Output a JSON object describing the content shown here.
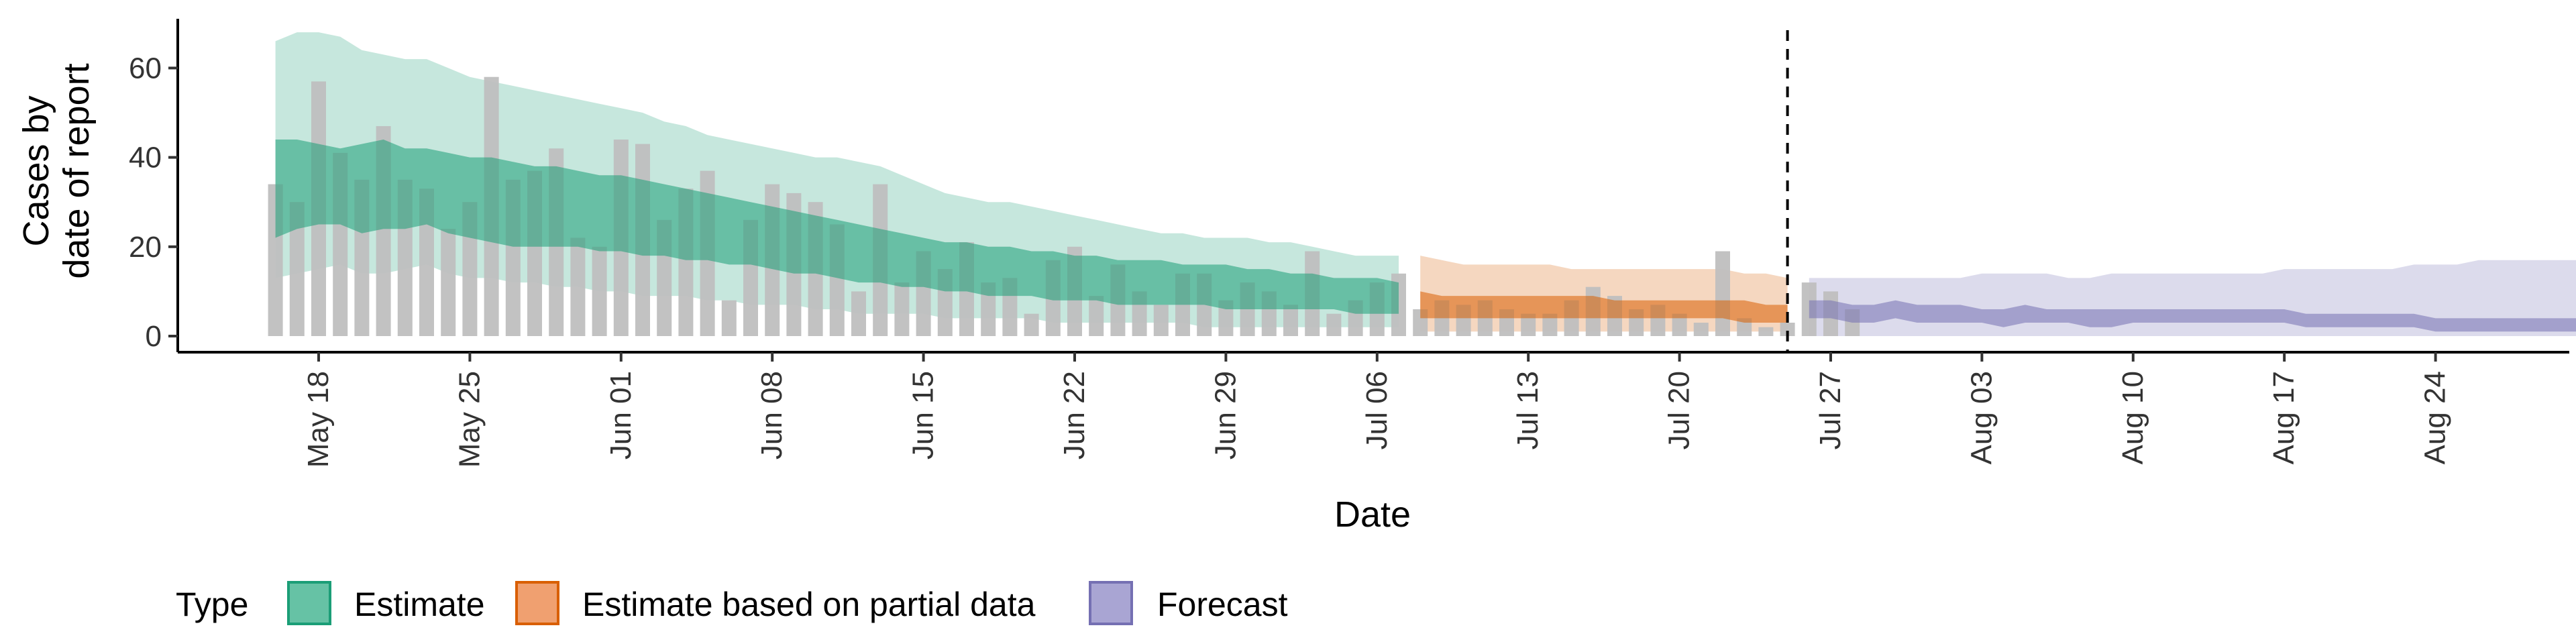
{
  "chart_data": {
    "type": "area",
    "xlabel": "Date",
    "ylabel": [
      "Cases by",
      "date of report"
    ],
    "ylim": [
      -3,
      72
    ],
    "x_ticks": [
      "May 18",
      "May 25",
      "Jun 01",
      "Jun 08",
      "Jun 15",
      "Jun 22",
      "Jun 29",
      "Jul 06",
      "Jul 13",
      "Jul 20",
      "Jul 27",
      "Aug 03",
      "Aug 10",
      "Aug 17",
      "Aug 24"
    ],
    "y_ticks": [
      0,
      20,
      40,
      60
    ],
    "vline_date": "2020-07-25",
    "legend": {
      "title": "Type",
      "position": "bottom-left",
      "items": [
        {
          "label": "Estimate",
          "fill": "#66c2a5",
          "stroke": "#1b9e77"
        },
        {
          "label": "Estimate based on partial data",
          "fill": "#f0a070",
          "stroke": "#d95f02"
        },
        {
          "label": "Forecast",
          "fill": "#a9a5d3",
          "stroke": "#7570b3"
        }
      ]
    },
    "colors": {
      "bars": "#bfbfbf",
      "estimate": "#1b9e77",
      "partial": "#d95f02",
      "forecast": "#7570b3",
      "vline": "#000000"
    },
    "reported_cases": {
      "start": "2020-05-16",
      "values": [
        34,
        30,
        57,
        41,
        35,
        47,
        35,
        33,
        24,
        30,
        58,
        35,
        37,
        42,
        22,
        20,
        44,
        43,
        26,
        33,
        37,
        8,
        26,
        34,
        32,
        30,
        25,
        10,
        34,
        12,
        19,
        15,
        21,
        12,
        13,
        5,
        17,
        20,
        9,
        16,
        10,
        7,
        14,
        14,
        8,
        12,
        10,
        7,
        19,
        5,
        8,
        12,
        14,
        6,
        8,
        7,
        8,
        6,
        5,
        5,
        8,
        11,
        9,
        6,
        7,
        5,
        3,
        19,
        4,
        2,
        3,
        12,
        10,
        6
      ]
    },
    "series": [
      {
        "name": "Estimate",
        "start": "2020-05-16",
        "inner": {
          "lower": [
            22,
            24,
            25,
            25,
            23,
            24,
            24,
            25,
            23,
            22,
            21,
            20,
            20,
            20,
            20,
            19,
            19,
            18,
            18,
            17,
            17,
            16,
            16,
            15,
            14,
            14,
            13,
            12,
            12,
            11,
            11,
            10,
            10,
            9,
            9,
            9,
            8,
            8,
            8,
            7,
            7,
            7,
            7,
            7,
            6,
            6,
            6,
            6,
            6,
            6,
            5,
            5,
            5
          ],
          "upper": [
            44,
            44,
            43,
            42,
            43,
            44,
            42,
            42,
            41,
            40,
            40,
            39,
            38,
            38,
            37,
            36,
            36,
            35,
            34,
            33,
            32,
            31,
            30,
            29,
            28,
            27,
            26,
            25,
            24,
            23,
            22,
            21,
            21,
            20,
            20,
            19,
            19,
            18,
            18,
            17,
            17,
            17,
            16,
            16,
            16,
            15,
            15,
            14,
            14,
            13,
            13,
            13,
            12
          ]
        },
        "outer": {
          "lower": [
            13,
            14,
            15,
            16,
            14,
            14,
            15,
            16,
            14,
            13,
            13,
            12,
            12,
            11,
            11,
            10,
            10,
            9,
            9,
            9,
            8,
            8,
            7,
            7,
            7,
            6,
            6,
            5,
            5,
            5,
            5,
            4,
            4,
            4,
            4,
            4,
            3,
            3,
            3,
            3,
            3,
            3,
            3,
            2,
            2,
            2,
            2,
            2,
            2,
            2,
            2,
            2,
            2
          ],
          "upper": [
            66,
            68,
            68,
            67,
            64,
            63,
            62,
            62,
            60,
            58,
            57,
            56,
            55,
            54,
            53,
            52,
            51,
            50,
            48,
            47,
            45,
            44,
            43,
            42,
            41,
            40,
            40,
            39,
            38,
            36,
            34,
            32,
            31,
            30,
            30,
            29,
            28,
            27,
            26,
            25,
            24,
            23,
            23,
            22,
            22,
            22,
            21,
            21,
            20,
            19,
            18,
            18,
            18
          ]
        }
      },
      {
        "name": "Estimate based on partial data",
        "start": "2020-07-08",
        "inner": {
          "lower": [
            4,
            4,
            4,
            4,
            4,
            4,
            4,
            4,
            4,
            4,
            4,
            4,
            4,
            4,
            4,
            3,
            3,
            3
          ],
          "upper": [
            10,
            9,
            9,
            9,
            9,
            9,
            9,
            9,
            9,
            8,
            8,
            8,
            8,
            8,
            8,
            8,
            7,
            7
          ]
        },
        "outer": {
          "lower": [
            1,
            1,
            1,
            1,
            1,
            1,
            1,
            1,
            1,
            1,
            1,
            1,
            1,
            1,
            1,
            1,
            1,
            1
          ],
          "upper": [
            18,
            17,
            16,
            16,
            16,
            16,
            16,
            15,
            15,
            15,
            15,
            15,
            15,
            15,
            15,
            14,
            14,
            13
          ]
        }
      },
      {
        "name": "Forecast",
        "start": "2020-07-26",
        "inner": {
          "lower": [
            4,
            4,
            3,
            3,
            4,
            3,
            3,
            3,
            3,
            2,
            3,
            3,
            3,
            2,
            2,
            3,
            3,
            3,
            3,
            3,
            3,
            3,
            3,
            2,
            2,
            2,
            2,
            2,
            2,
            1,
            1,
            1,
            1,
            1,
            1,
            1,
            1,
            1,
            1,
            1
          ],
          "upper": [
            8,
            8,
            7,
            7,
            8,
            7,
            7,
            7,
            6,
            6,
            7,
            6,
            6,
            6,
            6,
            6,
            6,
            6,
            6,
            6,
            6,
            6,
            6,
            5,
            5,
            5,
            5,
            5,
            5,
            4,
            4,
            4,
            4,
            4,
            4,
            4,
            4,
            4,
            4,
            4
          ]
        },
        "outer": {
          "lower": [
            0,
            0,
            0,
            0,
            0,
            0,
            0,
            0,
            0,
            0,
            0,
            0,
            0,
            0,
            0,
            0,
            0,
            0,
            0,
            0,
            0,
            0,
            0,
            0,
            0,
            0,
            0,
            0,
            0,
            0,
            0,
            0,
            0,
            0,
            0,
            0,
            0,
            0,
            0,
            0
          ],
          "upper": [
            13,
            13,
            13,
            13,
            13,
            13,
            13,
            13,
            14,
            14,
            14,
            14,
            13,
            13,
            14,
            14,
            14,
            14,
            14,
            14,
            14,
            14,
            15,
            15,
            15,
            15,
            15,
            15,
            16,
            16,
            16,
            17,
            17,
            17,
            17,
            17,
            17,
            17,
            19,
            18
          ]
        }
      }
    ]
  }
}
